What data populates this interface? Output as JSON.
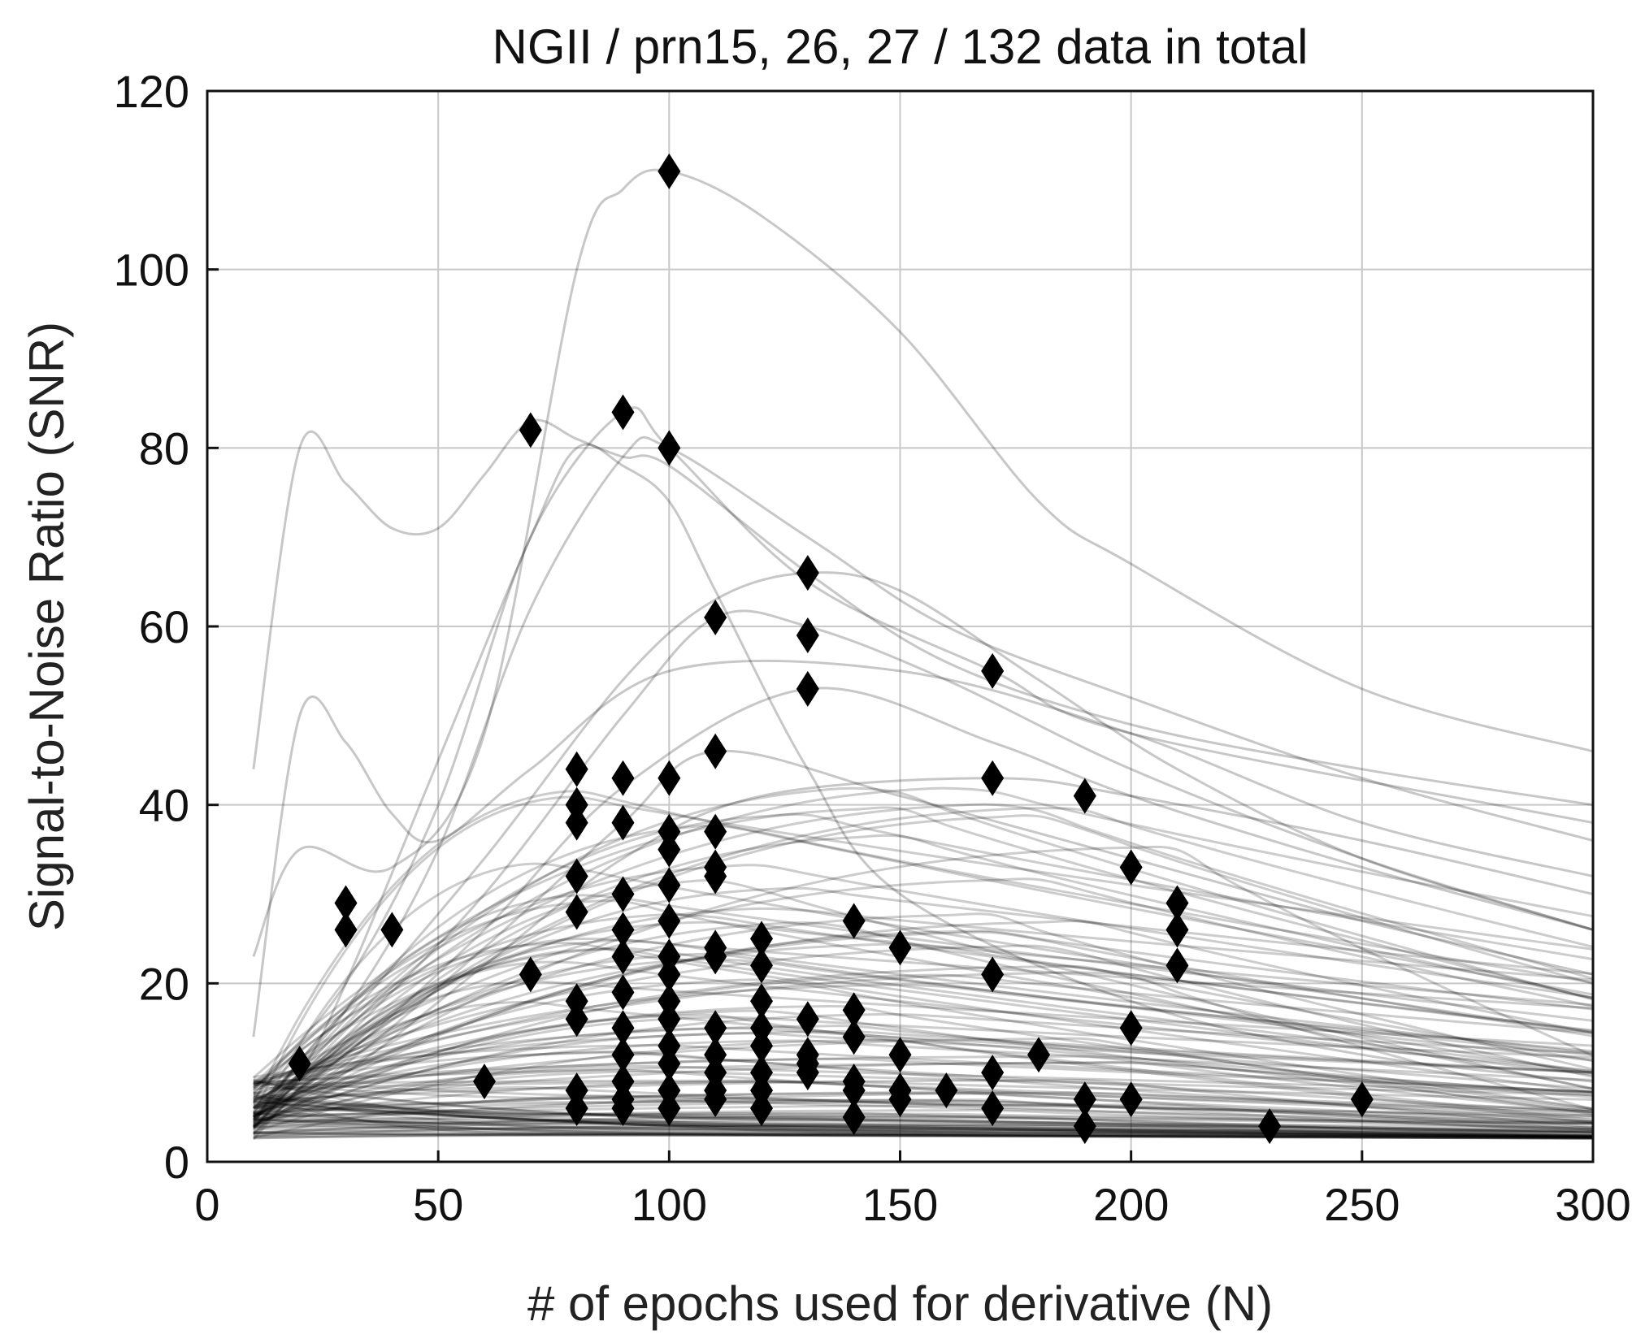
{
  "chart_data": {
    "type": "line",
    "title": "NGII / prn15, 26, 27 / 132 data in total",
    "xlabel": "# of epochs used for derivative (N)",
    "ylabel": "Signal-to-Noise Ratio (SNR)",
    "xlim": [
      0,
      300
    ],
    "ylim": [
      0,
      120
    ],
    "xticks": [
      0,
      50,
      100,
      150,
      200,
      250,
      300
    ],
    "yticks": [
      0,
      20,
      40,
      60,
      80,
      100,
      120
    ],
    "grid": true,
    "line_color": "#000000",
    "marker_color": "#000000",
    "marker_shape": "diamond",
    "series_count": 132,
    "highlighted_series": [
      {
        "name": "peak-111",
        "x": [
          10,
          20,
          40,
          60,
          80,
          90,
          100,
          120,
          150,
          180,
          200,
          250,
          300
        ],
        "y": [
          23,
          35,
          33,
          48,
          100,
          109,
          111,
          106,
          93,
          74,
          67,
          53,
          46
        ]
      },
      {
        "name": "peak-80-early",
        "x": [
          10,
          20,
          30,
          40,
          50,
          60,
          70,
          80,
          90,
          100,
          130,
          160,
          200,
          250,
          300
        ],
        "y": [
          44,
          80,
          76,
          71,
          71,
          77,
          83,
          81,
          79,
          78,
          66,
          56,
          49,
          44,
          40
        ]
      },
      {
        "name": "peak-84",
        "x": [
          10,
          30,
          50,
          70,
          90,
          100,
          130,
          170,
          200,
          300
        ],
        "y": [
          8,
          20,
          40,
          70,
          84,
          80,
          65,
          55,
          48,
          38
        ]
      },
      {
        "name": "peak-80-late",
        "x": [
          10,
          30,
          50,
          70,
          90,
          100,
          130,
          160,
          200,
          250,
          300
        ],
        "y": [
          6,
          17,
          35,
          62,
          79,
          80,
          70,
          60,
          52,
          43,
          36
        ]
      },
      {
        "name": "early-50",
        "x": [
          10,
          20,
          30,
          40,
          50,
          70,
          100,
          150,
          200,
          250,
          300
        ],
        "y": [
          14,
          50,
          47,
          39,
          36,
          44,
          55,
          55,
          48,
          38,
          32
        ]
      },
      {
        "name": "steep-drop",
        "x": [
          10,
          20,
          30,
          50,
          70,
          80,
          90,
          100,
          110,
          130,
          150,
          200,
          250,
          300
        ],
        "y": [
          6,
          10,
          20,
          45,
          70,
          80,
          78,
          74,
          64,
          44,
          30,
          18,
          12,
          9
        ]
      },
      {
        "name": "peak-66",
        "x": [
          10,
          30,
          60,
          90,
          110,
          130,
          150,
          180,
          210,
          250,
          300
        ],
        "y": [
          6,
          16,
          34,
          54,
          63,
          66,
          64,
          54,
          44,
          34,
          26
        ]
      },
      {
        "name": "peak-61",
        "x": [
          10,
          30,
          60,
          90,
          110,
          130,
          160,
          200,
          250,
          300
        ],
        "y": [
          5,
          14,
          30,
          50,
          61,
          60,
          54,
          44,
          34,
          26
        ]
      },
      {
        "name": "peak-53",
        "x": [
          10,
          30,
          60,
          90,
          130,
          170,
          200,
          250,
          300
        ],
        "y": [
          5,
          12,
          26,
          42,
          53,
          47,
          41,
          33,
          26
        ]
      },
      {
        "name": "peak-46",
        "x": [
          10,
          30,
          60,
          90,
          110,
          150,
          200,
          250,
          300
        ],
        "y": [
          5,
          11,
          24,
          38,
          46,
          41,
          34,
          27,
          21
        ]
      },
      {
        "name": "peak-43",
        "x": [
          10,
          30,
          60,
          90,
          120,
          170,
          200,
          250,
          300
        ],
        "y": [
          5,
          10,
          22,
          34,
          41,
          43,
          41,
          36,
          30
        ]
      }
    ],
    "peak_markers": {
      "x": [
        20,
        30,
        30,
        40,
        60,
        70,
        70,
        80,
        80,
        80,
        80,
        80,
        80,
        80,
        80,
        80,
        90,
        90,
        90,
        90,
        90,
        90,
        90,
        90,
        90,
        90,
        90,
        90,
        100,
        100,
        100,
        100,
        100,
        100,
        100,
        100,
        100,
        100,
        100,
        100,
        100,
        100,
        100,
        110,
        110,
        110,
        110,
        110,
        110,
        110,
        110,
        110,
        110,
        110,
        110,
        120,
        120,
        120,
        120,
        120,
        120,
        120,
        120,
        130,
        130,
        130,
        130,
        130,
        130,
        130,
        140,
        140,
        140,
        140,
        140,
        140,
        150,
        150,
        150,
        150,
        160,
        170,
        170,
        170,
        170,
        170,
        180,
        190,
        190,
        190,
        200,
        200,
        200,
        210,
        210,
        210,
        230,
        250
      ],
      "y": [
        11,
        29,
        26,
        26,
        9,
        82,
        21,
        44,
        40,
        38,
        32,
        28,
        18,
        16,
        6,
        8,
        84,
        43,
        38,
        30,
        26,
        23,
        19,
        15,
        12,
        9,
        7,
        6,
        111,
        80,
        43,
        37,
        35,
        31,
        27,
        23,
        21,
        18,
        16,
        13,
        11,
        8,
        6,
        61,
        46,
        37,
        33,
        32,
        24,
        23,
        15,
        12,
        10,
        8,
        7,
        25,
        22,
        18,
        15,
        13,
        10,
        8,
        6,
        66,
        59,
        53,
        16,
        12,
        11,
        10,
        27,
        17,
        14,
        9,
        8,
        5,
        24,
        12,
        8,
        7,
        8,
        55,
        43,
        21,
        10,
        6,
        12,
        41,
        7,
        4,
        33,
        15,
        7,
        29,
        26,
        22,
        4,
        7
      ]
    }
  }
}
